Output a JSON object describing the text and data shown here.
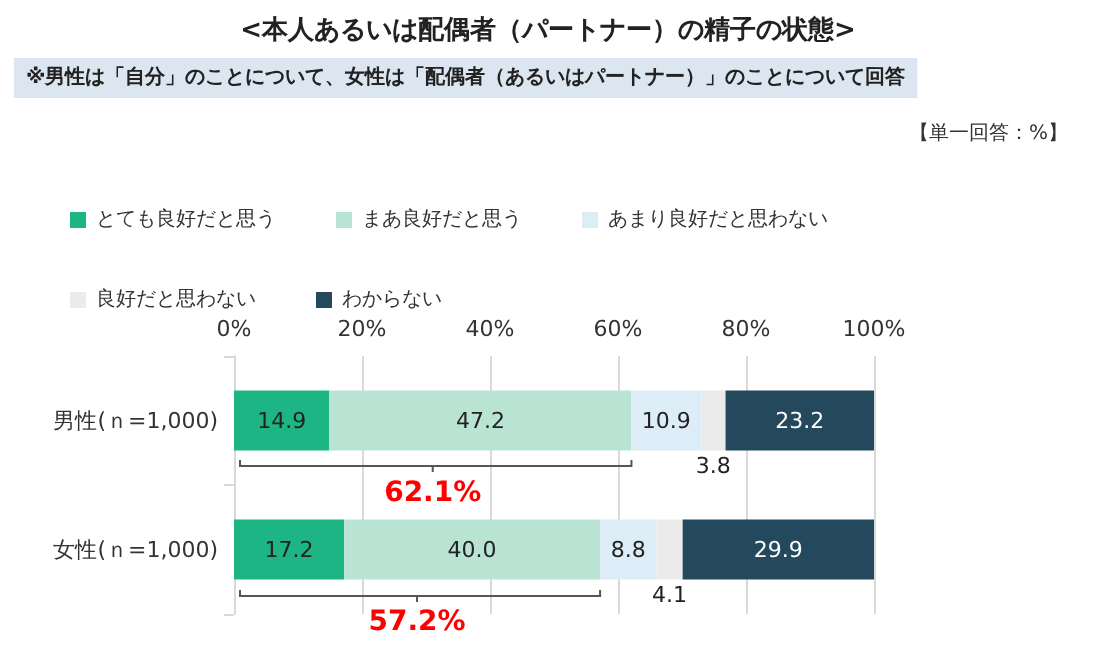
{
  "chart_data": {
    "type": "bar",
    "orientation": "horizontal",
    "stacked": true,
    "title": "<本人あるいは配偶者（パートナー）の精子の状態>",
    "subtitle": "※男性は「自分」のことについて、女性は「配偶者（あるいはパートナー）」のことについて回答",
    "categories": [
      "男性(ｎ=1,000)",
      "女性(ｎ=1,000)"
    ],
    "series": [
      {
        "name": "とても良好だと思う",
        "color": "#1db584",
        "values": [
          14.9,
          17.2
        ],
        "value_labels": [
          "14.9",
          "17.2"
        ]
      },
      {
        "name": "まあ良好だと思う",
        "color": "#b9e4d4",
        "values": [
          47.2,
          40.0
        ],
        "value_labels": [
          "47.2",
          "40.0"
        ]
      },
      {
        "name": "あまり良好だと思わない",
        "color": "#ddedf7",
        "values": [
          10.9,
          8.8
        ],
        "value_labels": [
          "10.9",
          "8.8"
        ]
      },
      {
        "name": "良好だと思わない",
        "color": "#ebebeb",
        "values": [
          3.8,
          4.1
        ],
        "value_labels": [
          "3.8",
          "4.1"
        ]
      },
      {
        "name": "わからない",
        "color": "#24495d",
        "values": [
          23.2,
          29.9
        ],
        "value_labels": [
          "23.2",
          "29.9"
        ]
      }
    ],
    "xlim": [
      0,
      100
    ],
    "xticks": [
      {
        "value": 0,
        "label": "0%"
      },
      {
        "value": 20,
        "label": "20%"
      },
      {
        "value": 40,
        "label": "40%"
      },
      {
        "value": 60,
        "label": "60%"
      },
      {
        "value": 80,
        "label": "80%"
      },
      {
        "value": 100,
        "label": "100%"
      }
    ],
    "grid": "x",
    "legend": "top left",
    "annotations": [
      "【単一回答：%】",
      "62.1%",
      "57.2%"
    ]
  }
}
